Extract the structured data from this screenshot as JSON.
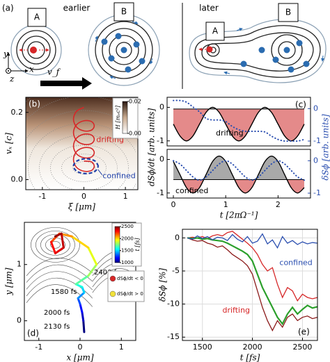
{
  "figure": {
    "panel_a": {
      "label": "(a)",
      "box_a": "A",
      "box_b": "B",
      "box_a_later": "A",
      "box_b_later": "B",
      "earlier": "earlier",
      "later": "later",
      "axis_y": "y",
      "axis_x": "x",
      "axis_z": "z",
      "velocity": "v_f"
    }
  },
  "chart_data": [
    {
      "type": "line",
      "panel_label": "(b)",
      "xlabel": "ξ [μm]",
      "ylabel": "vₓ [c]",
      "xlim": [
        -1.4,
        1.3
      ],
      "ylim": [
        -0.03,
        0.245
      ],
      "xticks": [
        -1,
        0,
        1
      ],
      "yticks": [
        {
          "value": 0,
          "label": "0.0"
        },
        0.2
      ],
      "series": [
        {
          "name": "drifting",
          "color": "#d62728",
          "x": [
            0,
            0.18,
            0.25,
            0.18,
            0,
            -0.18,
            -0.25,
            -0.18,
            0,
            0.18,
            0.25,
            0.18,
            0,
            -0.18,
            -0.25,
            -0.18,
            0,
            0.18,
            0.25,
            0.18,
            0,
            -0.18,
            -0.25,
            -0.18,
            0,
            0.18,
            0.25,
            0.18,
            0,
            -0.18,
            -0.25,
            -0.18,
            0
          ],
          "values": [
            0.055,
            0.053,
            0.04,
            0.027,
            0.025,
            0.037,
            0.06,
            0.083,
            0.095,
            0.093,
            0.08,
            0.067,
            0.065,
            0.077,
            0.1,
            0.123,
            0.135,
            0.133,
            0.12,
            0.107,
            0.105,
            0.117,
            0.14,
            0.163,
            0.175,
            0.173,
            0.16,
            0.147,
            0.145,
            0.157,
            0.18,
            0.203,
            0.215
          ]
        },
        {
          "name": "confined",
          "color": "#1f3fa8",
          "dashed": true,
          "x": [
            0.35,
            0.26,
            0.05,
            -0.16,
            -0.25,
            -0.16,
            0.05,
            0.26,
            0.35
          ],
          "values": [
            0.04,
            0.056,
            0.062,
            0.056,
            0.04,
            0.024,
            0.018,
            0.024,
            0.04
          ]
        }
      ],
      "colorbar": {
        "label": "H [mₑc²]",
        "lim": [
          0,
          0.02
        ],
        "ticks": [
          {
            "value": 0,
            "label": "0.00"
          },
          {
            "value": 0.02,
            "label": "0.02"
          }
        ]
      }
    },
    {
      "type": "line",
      "panel_label": "(c)",
      "ylabel": "dSϕ/dt [arb. units]",
      "y2label": "δSϕ [arb. units]",
      "annotation": "drifting",
      "xlim": [
        -0.12,
        2.62
      ],
      "ylim": [
        -1.15,
        0.3
      ],
      "yticks": [
        0,
        -1
      ],
      "y2lim": [
        -1.15,
        0.35
      ],
      "y2ticks": [
        0,
        -1
      ],
      "fill_baseline": -0.05,
      "x": [
        0,
        0.125,
        0.25,
        0.375,
        0.5,
        0.625,
        0.75,
        0.875,
        1,
        1.125,
        1.25,
        1.375,
        1.5,
        1.625,
        1.75,
        1.875,
        2,
        2.125,
        2.25,
        2.375,
        2.5
      ],
      "series": [
        {
          "color": "#000000",
          "values": [
            -0.5,
            -0.85,
            -1,
            -0.85,
            -0.5,
            -0.15,
            0,
            -0.15,
            -0.5,
            -0.85,
            -1,
            -0.85,
            -0.5,
            -0.15,
            0,
            -0.15,
            -0.5,
            -0.85,
            -1,
            -0.85,
            -0.5
          ]
        },
        {
          "color": "#2b4fb0",
          "axis": "y2",
          "values": [
            0.25,
            0.25,
            0.2,
            0.05,
            -0.1,
            -0.3,
            -0.35,
            -0.35,
            -0.4,
            -0.55,
            -0.65,
            -0.7,
            -0.7,
            -0.7,
            -0.72,
            -0.85,
            -0.95,
            -1,
            -1,
            -1,
            -0.95
          ]
        }
      ]
    },
    {
      "type": "line",
      "annotation": "confined",
      "xlabel": "t [2πΩ⁻¹]",
      "xlim": [
        -0.12,
        2.62
      ],
      "ylim": [
        -1.15,
        0.3
      ],
      "yticks": [
        0,
        -1
      ],
      "y2lim": [
        -1.15,
        0.35
      ],
      "y2ticks": [
        0,
        -1
      ],
      "xticks": [
        0,
        1,
        2
      ],
      "fill_baseline": -0.6,
      "x": [
        0,
        0.125,
        0.25,
        0.375,
        0.5,
        0.625,
        0.75,
        0.875,
        1,
        1.125,
        1.25,
        1.375,
        1.5,
        1.625,
        1.75,
        1.875,
        2,
        2.125,
        2.25,
        2.375,
        2.5
      ],
      "series": [
        {
          "color": "#000000",
          "values": [
            -0.06,
            -0.45,
            -0.84,
            -1,
            -0.84,
            -0.45,
            -0.06,
            0.1,
            -0.06,
            -0.45,
            -0.84,
            -1,
            -0.84,
            -0.45,
            -0.06,
            0.1,
            -0.06,
            -0.45,
            -0.84,
            -1,
            -0.84
          ]
        },
        {
          "color": "#2b4fb0",
          "axis": "y2",
          "values": [
            0,
            -0.1,
            -0.3,
            -0.5,
            -0.6,
            -0.5,
            -0.3,
            -0.1,
            0,
            -0.1,
            -0.3,
            -0.5,
            -0.6,
            -0.5,
            -0.3,
            -0.1,
            0,
            -0.1,
            -0.3,
            -0.5,
            -0.6
          ]
        }
      ]
    },
    {
      "type": "trajectory",
      "panel_label": "(d)",
      "xlabel": "x [μm]",
      "ylabel": "y [μm]",
      "xlim": [
        -1.35,
        1.35
      ],
      "ylim": [
        -0.35,
        1.75
      ],
      "xticks": [
        -1,
        0,
        1
      ],
      "yticks": [
        0,
        1
      ],
      "series": [
        {
          "x": [
            0.1,
            0.08,
            0.05,
            0,
            -0.05,
            0.1,
            0.05,
            -0.1,
            0.2,
            0.4,
            0.2,
            -0.2,
            -0.5,
            -0.7,
            -0.6,
            -0.4,
            -0.45,
            -0.6
          ],
          "values": [
            -0.2,
            0,
            0.15,
            0.3,
            0.4,
            0.5,
            0.6,
            0.65,
            0.8,
            1,
            1.3,
            1.5,
            1.55,
            1.4,
            1.2,
            1.3,
            1.55,
            1.5
          ],
          "t": [
            1000,
            1100,
            1200,
            1300,
            1400,
            1500,
            1600,
            1700,
            1800,
            1900,
            2000,
            2100,
            2200,
            2300,
            2350,
            2400,
            2450,
            2500
          ]
        }
      ],
      "annotations": [
        "2400 fs",
        "1580 fs",
        "2000 fs",
        "2130 fs"
      ],
      "colorbar": {
        "label": "t [fs]",
        "lim": [
          1000,
          2500
        ],
        "ticks": [
          1000,
          1500,
          2000,
          2500
        ]
      },
      "legend": [
        {
          "label": "dSϕ/dt < 0",
          "color": "#d62728"
        },
        {
          "label": "dSϕ/dt > 0",
          "color": "#f2e23a"
        }
      ]
    },
    {
      "type": "line",
      "panel_label": "(e)",
      "xlabel": "t [fs]",
      "ylabel": "δSϕ [%]",
      "grid": true,
      "xlim": [
        1300,
        2650
      ],
      "ylim": [
        -15.5,
        1.3
      ],
      "xticks": [
        1500,
        2000,
        2500
      ],
      "yticks": [
        0,
        -5,
        -10,
        -15
      ],
      "x": [
        1350,
        1400,
        1450,
        1500,
        1550,
        1600,
        1650,
        1700,
        1750,
        1800,
        1850,
        1900,
        1950,
        2000,
        2050,
        2100,
        2150,
        2200,
        2250,
        2300,
        2350,
        2400,
        2450,
        2500,
        2550,
        2600,
        2650
      ],
      "series": [
        {
          "name": "confined",
          "color": "#2b4fb0",
          "values": [
            0,
            -0.2,
            0.3,
            -0.1,
            0.2,
            -0.3,
            0.1,
            0,
            -0.4,
            0.5,
            -0.2,
            -0.6,
            0.2,
            -0.8,
            -0.5,
            0.6,
            -0.9,
            -0.3,
            -1.5,
            0.2,
            -0.8,
            -0.4,
            -1,
            -0.6,
            -0.9,
            -0.7,
            -0.8
          ]
        },
        {
          "name": "drifting",
          "color": "#d62728",
          "values": [
            0,
            0.1,
            0,
            0.2,
            -0.1,
            0.3,
            0.5,
            0.3,
            0.8,
            1,
            0.4,
            -0.2,
            -0.8,
            -1.5,
            -2.5,
            -4,
            -5,
            -4.5,
            -7,
            -9,
            -7.5,
            -8,
            -9.5,
            -8.5,
            -9,
            -9.2,
            -9
          ]
        },
        {
          "color": "#8b1a1a",
          "values": [
            0,
            -0.3,
            -0.5,
            -0.4,
            -0.8,
            -1,
            -1.4,
            -1.2,
            -1.8,
            -2.5,
            -3,
            -3.5,
            -4.2,
            -5.5,
            -8,
            -10.5,
            -12.5,
            -14,
            -12.5,
            -13.5,
            -12,
            -11.5,
            -12.5,
            -12,
            -11.8,
            -12.2,
            -12
          ]
        },
        {
          "color": "#2ca02c",
          "values": [
            0,
            -0.1,
            0,
            -0.2,
            -0.1,
            -0.3,
            -0.4,
            -0.5,
            -0.8,
            -1.2,
            -1.6,
            -2,
            -2.5,
            -3.5,
            -5.5,
            -7.5,
            -9,
            -10.5,
            -12,
            -13,
            -11.5,
            -10.5,
            -11.5,
            -10.8,
            -10.2,
            -10.6,
            -10.4
          ]
        }
      ]
    }
  ]
}
